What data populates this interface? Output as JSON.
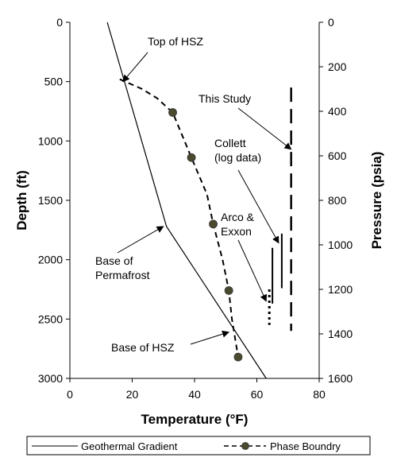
{
  "chart_data": {
    "type": "line",
    "x": {
      "label": "Temperature (°F)",
      "range": [
        0,
        80
      ],
      "ticks": [
        "0",
        "20",
        "40",
        "60",
        "80"
      ]
    },
    "y_left": {
      "label": "Depth (ft)",
      "range": [
        0,
        3000
      ],
      "inverted": true,
      "ticks": [
        "0",
        "500",
        "1000",
        "1500",
        "2000",
        "2500",
        "3000"
      ]
    },
    "y_right": {
      "label": "Pressure (psia)",
      "range": [
        0,
        1600
      ],
      "inverted": true,
      "ticks": [
        "0",
        "200",
        "400",
        "600",
        "800",
        "1000",
        "1200",
        "1400",
        "1600"
      ]
    },
    "series": [
      {
        "name": "Geothermal Gradient",
        "style": "solid",
        "points": [
          [
            12,
            0
          ],
          [
            31,
            1720
          ],
          [
            63,
            3000
          ]
        ]
      },
      {
        "name": "Phase Boundry",
        "style": "dashed-with-markers",
        "color": "#4a4a2e",
        "points": [
          [
            16,
            480
          ],
          [
            23,
            560
          ],
          [
            28,
            640
          ],
          [
            33,
            760
          ],
          [
            39,
            1140
          ],
          [
            44,
            1450
          ],
          [
            46,
            1700
          ],
          [
            49,
            2000
          ],
          [
            51,
            2260
          ],
          [
            52,
            2500
          ],
          [
            54,
            2820
          ]
        ],
        "markers": [
          [
            33,
            760
          ],
          [
            39,
            1140
          ],
          [
            46,
            1700
          ],
          [
            51,
            2260
          ],
          [
            54,
            2820
          ]
        ]
      }
    ],
    "vertical_lines": [
      {
        "label": "This Study",
        "x": 71,
        "depth": [
          550,
          2600
        ],
        "style": "long-dash"
      },
      {
        "label": "Collett (log data)",
        "x": 68,
        "depth": [
          1780,
          2240
        ],
        "style": "solid"
      },
      {
        "label": "Arco & Exxon",
        "x": 65,
        "depth": [
          1900,
          2370
        ],
        "style": "solid"
      },
      {
        "label": "Arco & Exxon",
        "x": 64,
        "depth": [
          2250,
          2550
        ],
        "style": "dotted"
      }
    ],
    "annotations": [
      {
        "text": "Top of HSZ",
        "target": [
          17,
          500
        ]
      },
      {
        "text": "This Study",
        "target": [
          71,
          1070
        ]
      },
      {
        "text": "Collett\n(log data)",
        "target": [
          67,
          1860
        ]
      },
      {
        "text": "Arco &\nExxon",
        "target": [
          63,
          2350
        ]
      },
      {
        "text": "Base of\nPermafrost",
        "target": [
          30,
          1720
        ]
      },
      {
        "text": "Base of HSZ",
        "target": [
          51,
          2610
        ]
      }
    ],
    "legend": {
      "position": "bottom",
      "entries": [
        "Geothermal Gradient",
        "Phase Boundry"
      ]
    },
    "grid": false
  }
}
